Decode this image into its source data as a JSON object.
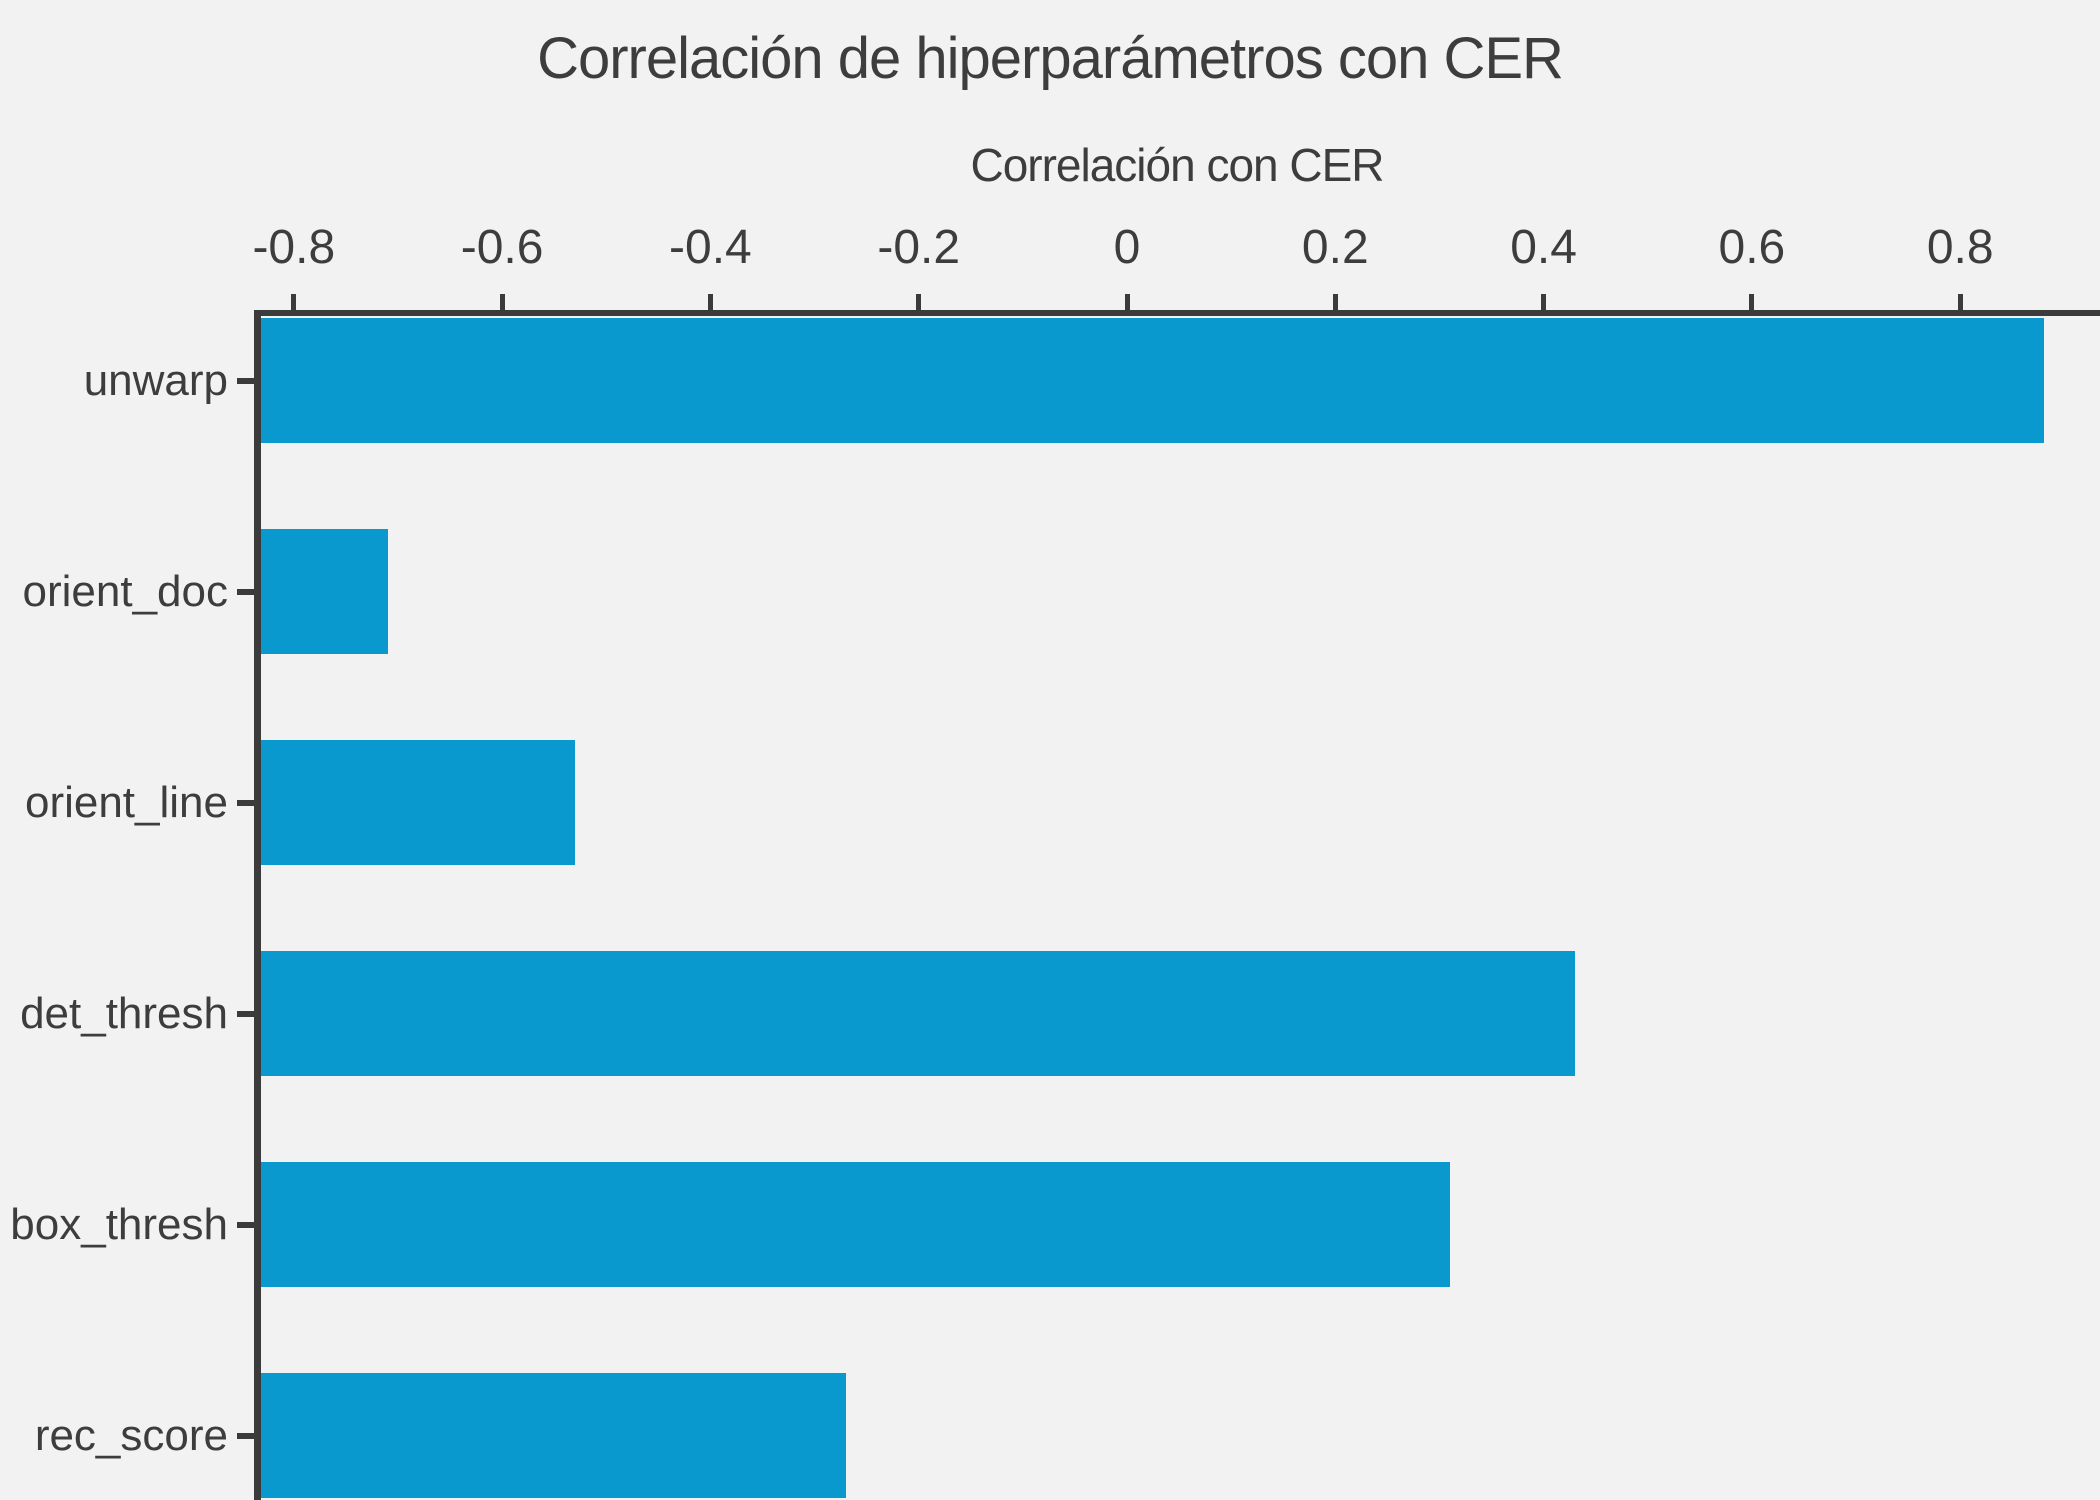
{
  "chart_data": {
    "type": "bar",
    "orientation": "horizontal",
    "title": "Correlación de hiperparámetros con CER",
    "xlabel": "Correlación con CER",
    "ylabel": "",
    "categories": [
      "unwarp",
      "orient_doc",
      "orient_line",
      "det_thresh",
      "box_thresh",
      "rec_score"
    ],
    "values": [
      0.88,
      -0.71,
      -0.53,
      0.43,
      0.31,
      -0.27
    ],
    "x_ticks": [
      -0.8,
      -0.6,
      -0.4,
      -0.2,
      0,
      0.2,
      0.4,
      0.6,
      0.8
    ],
    "x_tick_labels": [
      "-0.8",
      "-0.6",
      "-0.4",
      "-0.2",
      "0",
      "0.2",
      "0.4",
      "0.6",
      "0.8"
    ],
    "xlim": [
      -0.84,
      0.93
    ],
    "bar_baseline": -0.84,
    "axis_position": "top",
    "grid": false,
    "legend": false,
    "colors": {
      "bar": "#0a99cf",
      "background": "#f2f2f2",
      "axis": "#3b3b3b",
      "text": "#3d3d3d"
    }
  }
}
